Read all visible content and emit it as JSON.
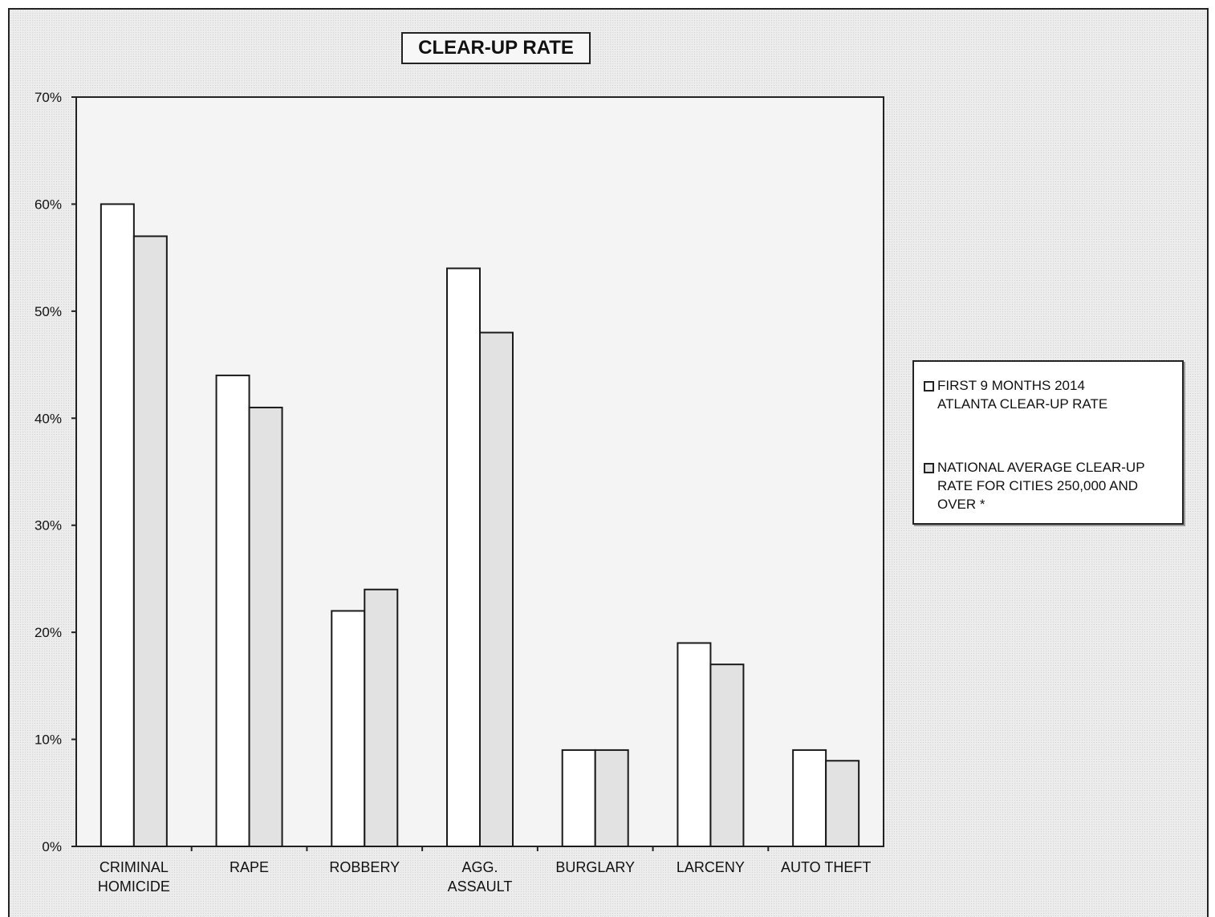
{
  "chart_data": {
    "type": "bar",
    "title": "CLEAR-UP RATE",
    "xlabel": "",
    "ylabel": "",
    "ylim": [
      0,
      0.7
    ],
    "yticks": [
      "0%",
      "10%",
      "20%",
      "30%",
      "40%",
      "50%",
      "60%",
      "70%"
    ],
    "categories": [
      [
        "CRIMINAL",
        "HOMICIDE"
      ],
      [
        "RAPE"
      ],
      [
        "ROBBERY"
      ],
      [
        "AGG.",
        "ASSAULT"
      ],
      [
        "BURGLARY"
      ],
      [
        "LARCENY"
      ],
      [
        "AUTO THEFT"
      ]
    ],
    "series": [
      {
        "name": "FIRST  9  MONTHS  2014 ATLANTA CLEAR-UP RATE",
        "legend_lines": [
          "FIRST  9  MONTHS  2014",
          "ATLANTA CLEAR-UP RATE"
        ],
        "color": "#ffffff",
        "values": [
          0.6,
          0.44,
          0.22,
          0.54,
          0.09,
          0.19,
          0.09
        ]
      },
      {
        "name": "NATIONAL AVERAGE CLEAR-UP RATE FOR CITIES 250,000 AND OVER *",
        "legend_lines": [
          "NATIONAL AVERAGE CLEAR-UP",
          "RATE FOR CITIES 250,000 AND",
          "OVER *"
        ],
        "color": "#e2e2e2",
        "values": [
          0.57,
          0.41,
          0.24,
          0.48,
          0.09,
          0.17,
          0.08
        ]
      }
    ],
    "grid": false,
    "legend_position": "right"
  }
}
